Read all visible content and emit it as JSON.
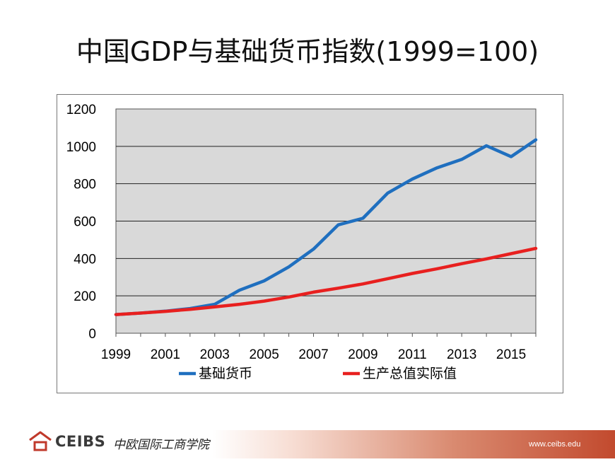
{
  "slide": {
    "title": "中国GDP与基础货币指数(1999=100)"
  },
  "chart_data": {
    "type": "line",
    "x": [
      1999,
      2000,
      2001,
      2002,
      2003,
      2004,
      2005,
      2006,
      2007,
      2008,
      2009,
      2010,
      2011,
      2012,
      2013,
      2014,
      2015,
      2016
    ],
    "x_tick_labels": [
      "1999",
      "2001",
      "2003",
      "2005",
      "2007",
      "2009",
      "2011",
      "2013",
      "2015"
    ],
    "y_tick_labels": [
      "0",
      "200",
      "400",
      "600",
      "800",
      "1000",
      "1200"
    ],
    "ylim": [
      0,
      1200
    ],
    "xlim": [
      1999,
      2016
    ],
    "grid": true,
    "legend_position": "bottom",
    "series": [
      {
        "name": "基础货币",
        "color": "#1f6fbf",
        "values": [
          100,
          108,
          118,
          132,
          155,
          230,
          280,
          355,
          450,
          580,
          615,
          750,
          825,
          885,
          930,
          1003,
          945,
          1035
        ]
      },
      {
        "name": "生产总值实际值",
        "color": "#e8201f",
        "values": [
          100,
          108,
          117,
          128,
          141,
          155,
          172,
          194,
          220,
          241,
          264,
          292,
          320,
          345,
          372,
          398,
          426,
          454
        ]
      }
    ]
  },
  "footer": {
    "logo_text": "CEIBS",
    "logo_cn": "中欧国际工商学院",
    "url": "www.ceibs.edu"
  }
}
